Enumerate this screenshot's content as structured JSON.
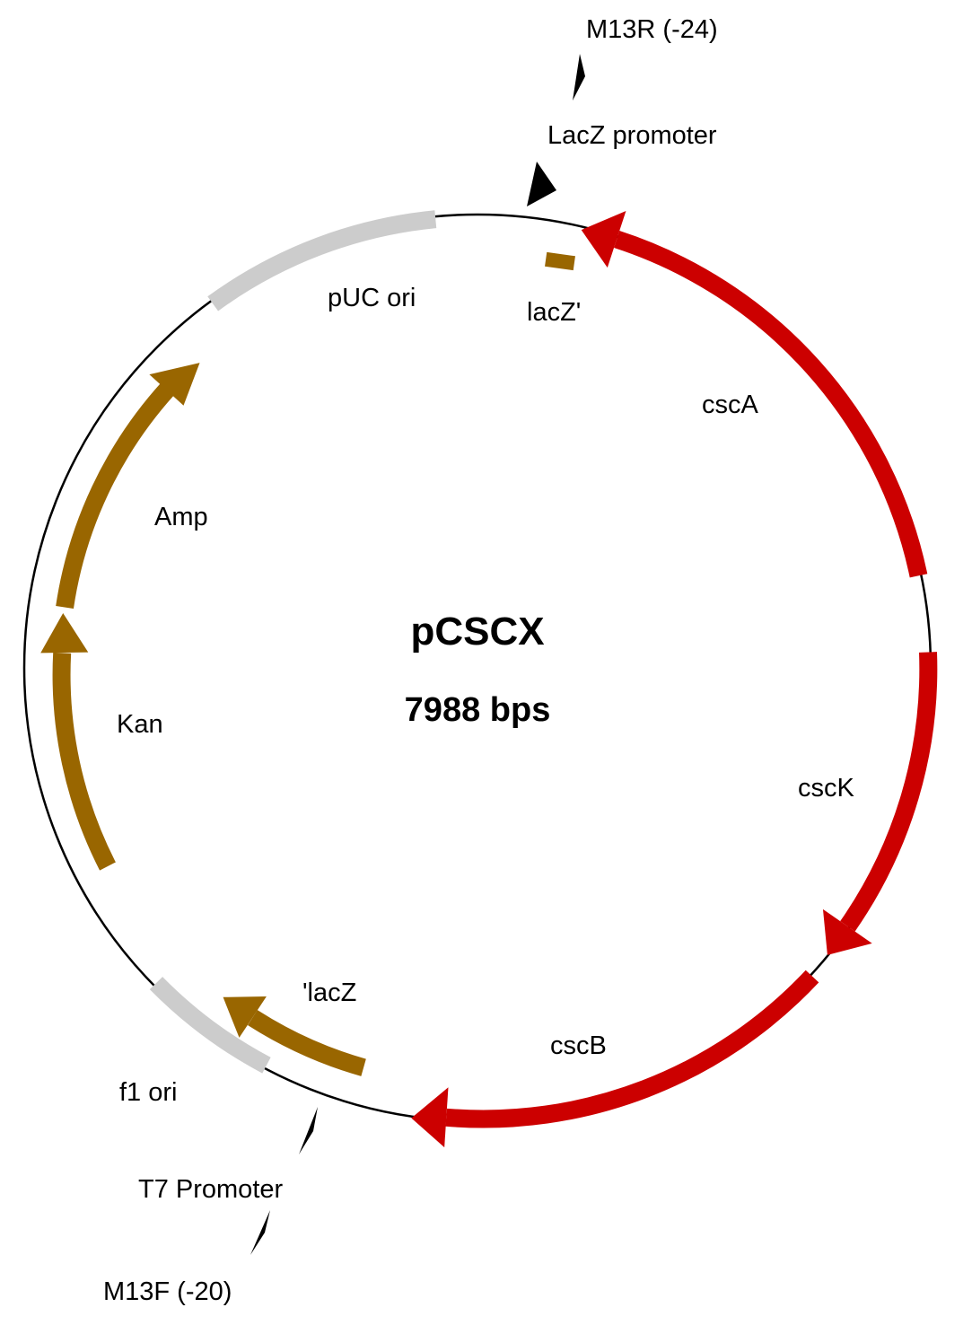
{
  "plasmid": {
    "name": "pCSCX",
    "size_label": "7988 bps"
  },
  "colors": {
    "backbone": "#000000",
    "red_feature": "#cc0000",
    "brown_feature": "#996600",
    "gray_feature": "#cccccc",
    "marker": "#000000"
  },
  "features": {
    "cscA": {
      "label": "cscA",
      "color": "red_feature",
      "direction": "counterclockwise"
    },
    "cscK": {
      "label": "cscK",
      "color": "red_feature",
      "direction": "clockwise"
    },
    "cscB": {
      "label": "cscB",
      "color": "red_feature",
      "direction": "clockwise"
    },
    "lacZ_prime": {
      "label": "lacZ'",
      "color": "brown_feature"
    },
    "prime_lacZ": {
      "label": "'lacZ",
      "color": "brown_feature",
      "direction": "clockwise"
    },
    "pUC_ori": {
      "label": "pUC ori",
      "color": "gray_feature"
    },
    "f1_ori": {
      "label": "f1 ori",
      "color": "gray_feature"
    },
    "Amp": {
      "label": "Amp",
      "color": "brown_feature",
      "direction": "clockwise"
    },
    "Kan": {
      "label": "Kan",
      "color": "brown_feature",
      "direction": "clockwise"
    }
  },
  "markers": {
    "M13R": {
      "label": "M13R (-24)"
    },
    "LacZ_promoter": {
      "label": "LacZ promoter"
    },
    "T7_promoter": {
      "label": "T7 Promoter"
    },
    "M13F": {
      "label": "M13F (-20)"
    }
  }
}
